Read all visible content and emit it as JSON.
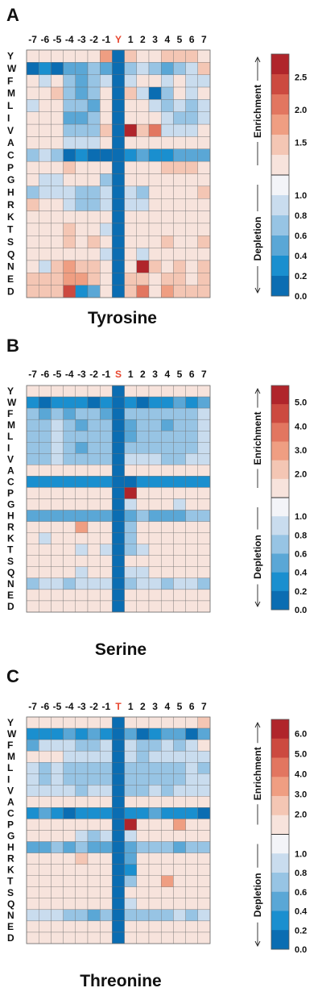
{
  "amino_acids": [
    "Y",
    "W",
    "F",
    "M",
    "L",
    "I",
    "V",
    "A",
    "C",
    "P",
    "G",
    "H",
    "R",
    "K",
    "T",
    "S",
    "Q",
    "N",
    "E",
    "D"
  ],
  "positions": [
    "-7",
    "-6",
    "-5",
    "-4",
    "-3",
    "-2",
    "-1",
    "0",
    "1",
    "2",
    "3",
    "4",
    "5",
    "6",
    "7"
  ],
  "colors": {
    "depletion": [
      "#0b6db2",
      "#1a8fcf",
      "#5aa7d6",
      "#97c4e4",
      "#c9dcee",
      "#f3f4f8"
    ],
    "enrichment": [
      "#f7e3dc",
      "#f4c6b4",
      "#ef9e82",
      "#e27660",
      "#cc4a40",
      "#b0252b"
    ],
    "center_column": "#0b6db2",
    "center_label": "#e8452e",
    "grid_line": "#6e6e6e"
  },
  "side_labels": {
    "enrichment": "Enrichment",
    "depletion": "Depletion"
  },
  "chart_data": [
    {
      "type": "heatmap",
      "panel": "A",
      "title": "Tyrosine",
      "center_residue": "Y",
      "colorbar": {
        "ticks": [
          "0.0",
          "0.2",
          "0.4",
          "0.6",
          "0.8",
          "1.0",
          "1.5",
          "2.0",
          "2.5"
        ],
        "enrich_max": 2.8
      },
      "values": [
        [
          1.2,
          1.1,
          1.2,
          1.3,
          1.2,
          1.3,
          1.7,
          0.0,
          1.4,
          1.0,
          1.1,
          1.5,
          1.5,
          1.6,
          1.3
        ],
        [
          0.1,
          0.3,
          0.0,
          0.4,
          0.4,
          0.6,
          0.5,
          0.0,
          0.6,
          0.8,
          0.7,
          0.5,
          0.6,
          0.8,
          1.4
        ],
        [
          1.1,
          0.9,
          1.0,
          0.7,
          0.5,
          0.7,
          0.9,
          0.0,
          0.8,
          1.2,
          1.0,
          0.9,
          1.0,
          0.9,
          0.8
        ],
        [
          1.2,
          1.1,
          1.4,
          0.6,
          0.4,
          0.6,
          1.3,
          0.0,
          1.4,
          0.8,
          0.1,
          0.6,
          1.0,
          0.9,
          1.1
        ],
        [
          0.9,
          1.1,
          1.2,
          0.6,
          0.6,
          0.5,
          1.3,
          0.0,
          1.2,
          1.0,
          0.8,
          0.7,
          0.8,
          0.7,
          0.9
        ],
        [
          1.0,
          1.1,
          1.1,
          0.5,
          0.4,
          0.7,
          1.2,
          0.0,
          1.2,
          1.0,
          1.2,
          0.8,
          0.7,
          0.7,
          0.8
        ],
        [
          1.2,
          1.1,
          1.3,
          0.6,
          0.6,
          0.6,
          1.6,
          0.0,
          2.8,
          1.5,
          2.1,
          0.8,
          0.8,
          0.9,
          1.0
        ],
        [
          1.1,
          1.0,
          1.2,
          0.9,
          0.9,
          0.9,
          1.3,
          0.0,
          1.1,
          1.2,
          1.1,
          1.1,
          1.1,
          1.0,
          1.1
        ],
        [
          0.7,
          0.8,
          0.6,
          0.1,
          0.3,
          0.1,
          0.1,
          0.0,
          0.2,
          0.4,
          0.3,
          0.3,
          0.4,
          0.4,
          0.4
        ],
        [
          1.2,
          1.2,
          1.3,
          1.4,
          1.2,
          1.2,
          1.1,
          0.0,
          1.1,
          1.3,
          1.3,
          1.5,
          1.5,
          1.4,
          1.3
        ],
        [
          1.0,
          0.9,
          0.9,
          1.1,
          1.2,
          1.0,
          0.6,
          0.0,
          1.1,
          1.2,
          1.0,
          1.0,
          1.0,
          1.1,
          1.1
        ],
        [
          0.6,
          0.8,
          0.9,
          0.8,
          0.6,
          0.6,
          0.8,
          0.0,
          0.8,
          0.6,
          1.0,
          1.2,
          1.1,
          1.1,
          1.4
        ],
        [
          1.6,
          1.0,
          1.1,
          0.9,
          0.7,
          0.7,
          0.9,
          0.0,
          0.9,
          0.8,
          1.0,
          1.2,
          1.1,
          1.1,
          1.2
        ],
        [
          1.2,
          1.1,
          1.2,
          1.3,
          1.3,
          1.1,
          1.0,
          0.0,
          1.2,
          1.1,
          1.3,
          1.3,
          1.3,
          1.3,
          1.3
        ],
        [
          1.2,
          1.1,
          1.2,
          1.5,
          1.3,
          1.2,
          0.9,
          0.0,
          1.3,
          1.1,
          1.3,
          1.2,
          1.3,
          1.2,
          1.3
        ],
        [
          1.2,
          1.2,
          1.2,
          1.5,
          1.2,
          1.4,
          1.0,
          0.0,
          1.3,
          1.2,
          1.2,
          1.4,
          1.2,
          1.1,
          1.4
        ],
        [
          1.0,
          1.2,
          1.3,
          1.2,
          1.1,
          1.0,
          0.9,
          0.0,
          1.1,
          0.9,
          1.1,
          1.1,
          1.2,
          1.1,
          1.3
        ],
        [
          1.3,
          0.9,
          1.6,
          1.7,
          1.6,
          1.5,
          1.0,
          0.0,
          1.3,
          2.7,
          1.4,
          1.3,
          1.4,
          1.3,
          1.4
        ],
        [
          1.4,
          1.5,
          1.6,
          1.9,
          1.7,
          1.4,
          1.1,
          0.0,
          1.5,
          1.5,
          1.2,
          1.5,
          1.4,
          1.3,
          1.5
        ],
        [
          1.5,
          1.5,
          1.6,
          2.5,
          0.3,
          0.5,
          1.0,
          0.0,
          1.6,
          2.1,
          1.2,
          1.7,
          1.6,
          1.4,
          1.5
        ]
      ]
    },
    {
      "type": "heatmap",
      "panel": "B",
      "title": "Serine",
      "center_residue": "S",
      "colorbar": {
        "ticks": [
          "0.0",
          "0.2",
          "0.4",
          "0.6",
          "0.8",
          "1.0",
          "2.0",
          "3.0",
          "4.0",
          "5.0"
        ],
        "enrich_max": 5.5
      },
      "values": [
        [
          1.2,
          1.1,
          1.1,
          1.1,
          1.2,
          1.1,
          1.0,
          0.0,
          1.1,
          1.2,
          1.1,
          1.2,
          1.1,
          1.2,
          1.2
        ],
        [
          0.2,
          0.1,
          0.2,
          0.3,
          0.2,
          0.1,
          0.2,
          0.0,
          0.3,
          0.1,
          0.2,
          0.3,
          0.4,
          0.3,
          0.4
        ],
        [
          0.6,
          0.5,
          0.7,
          0.5,
          0.6,
          0.6,
          0.5,
          0.0,
          0.7,
          0.6,
          0.6,
          0.6,
          0.6,
          0.7,
          0.8
        ],
        [
          0.6,
          0.6,
          0.8,
          0.6,
          0.5,
          0.6,
          0.6,
          0.0,
          0.5,
          0.6,
          0.7,
          0.5,
          0.6,
          0.6,
          0.8
        ],
        [
          0.7,
          0.6,
          0.8,
          0.7,
          0.6,
          0.7,
          0.7,
          0.0,
          0.5,
          0.7,
          0.7,
          0.7,
          0.7,
          0.7,
          0.9
        ],
        [
          0.7,
          0.6,
          0.8,
          0.7,
          0.5,
          0.6,
          0.7,
          0.0,
          0.6,
          0.6,
          0.7,
          0.7,
          0.6,
          0.7,
          0.8
        ],
        [
          0.7,
          0.7,
          0.9,
          0.7,
          0.7,
          0.7,
          0.7,
          0.0,
          0.8,
          0.8,
          0.8,
          0.7,
          0.7,
          0.8,
          0.9
        ],
        [
          1.2,
          1.2,
          1.3,
          1.2,
          1.2,
          1.3,
          1.2,
          0.0,
          1.1,
          1.2,
          1.3,
          1.2,
          1.2,
          1.3,
          1.3
        ],
        [
          0.2,
          0.2,
          0.2,
          0.3,
          0.3,
          0.2,
          0.2,
          0.0,
          0.1,
          0.2,
          0.3,
          0.2,
          0.3,
          0.2,
          0.3
        ],
        [
          1.2,
          1.2,
          1.3,
          1.2,
          1.2,
          1.2,
          1.1,
          0.0,
          5.3,
          1.2,
          1.3,
          1.2,
          1.3,
          1.3,
          1.2
        ],
        [
          1.1,
          1.1,
          1.2,
          1.1,
          1.1,
          1.2,
          1.2,
          0.0,
          0.8,
          1.3,
          1.1,
          1.1,
          0.9,
          1.2,
          1.1
        ],
        [
          0.4,
          0.4,
          0.5,
          0.4,
          0.4,
          0.4,
          0.4,
          0.0,
          0.4,
          0.6,
          0.5,
          0.5,
          0.5,
          0.6,
          0.6
        ],
        [
          1.1,
          1.0,
          1.1,
          1.1,
          2.8,
          1.6,
          1.2,
          0.0,
          0.7,
          1.0,
          1.1,
          1.2,
          1.2,
          1.2,
          1.3
        ],
        [
          1.0,
          0.9,
          1.0,
          1.1,
          1.3,
          1.1,
          1.0,
          0.0,
          0.6,
          1.1,
          1.1,
          1.0,
          1.1,
          1.1,
          1.1
        ],
        [
          1.1,
          1.0,
          1.0,
          1.0,
          0.8,
          1.2,
          0.9,
          0.0,
          0.7,
          0.9,
          1.1,
          1.2,
          1.2,
          1.1,
          1.2
        ],
        [
          1.2,
          1.3,
          1.2,
          1.7,
          1.4,
          1.6,
          1.3,
          0.0,
          1.0,
          1.2,
          1.2,
          1.3,
          1.2,
          1.1,
          1.2
        ],
        [
          1.1,
          1.1,
          1.1,
          1.2,
          0.9,
          1.0,
          1.2,
          0.0,
          0.8,
          0.9,
          1.2,
          1.1,
          1.1,
          1.1,
          1.0
        ],
        [
          0.7,
          0.8,
          0.8,
          0.7,
          0.8,
          0.8,
          0.8,
          0.0,
          0.7,
          0.8,
          0.8,
          0.7,
          0.8,
          0.8,
          0.7
        ],
        [
          1.2,
          1.2,
          1.1,
          1.3,
          1.2,
          1.2,
          1.3,
          0.0,
          1.2,
          1.5,
          1.2,
          1.3,
          1.2,
          1.3,
          1.2
        ],
        [
          1.2,
          1.3,
          1.3,
          1.2,
          1.3,
          1.2,
          1.3,
          0.0,
          1.3,
          1.2,
          1.3,
          1.2,
          1.3,
          1.2,
          1.2
        ]
      ]
    },
    {
      "type": "heatmap",
      "panel": "C",
      "title": "Threonine",
      "center_residue": "T",
      "colorbar": {
        "ticks": [
          "0.0",
          "0.2",
          "0.4",
          "0.6",
          "0.8",
          "1.0",
          "2.0",
          "3.0",
          "4.0",
          "5.0",
          "6.0"
        ],
        "enrich_max": 6.5
      },
      "values": [
        [
          1.2,
          1.2,
          1.1,
          1.1,
          1.1,
          1.1,
          1.0,
          0.0,
          1.1,
          1.2,
          1.2,
          1.2,
          1.2,
          1.4,
          2.2
        ],
        [
          0.2,
          0.3,
          0.2,
          0.4,
          0.3,
          0.4,
          0.3,
          0.0,
          0.5,
          0.1,
          0.3,
          0.5,
          0.5,
          0.1,
          0.5
        ],
        [
          0.4,
          0.8,
          0.8,
          0.8,
          0.7,
          0.7,
          0.8,
          0.0,
          0.9,
          0.6,
          0.7,
          0.8,
          0.7,
          0.8,
          1.1
        ],
        [
          1.1,
          1.2,
          1.1,
          0.9,
          0.8,
          0.9,
          0.9,
          0.0,
          0.8,
          0.7,
          0.8,
          0.9,
          0.8,
          0.8,
          0.9
        ],
        [
          0.8,
          0.7,
          0.8,
          0.7,
          0.6,
          0.7,
          0.7,
          0.0,
          0.7,
          0.6,
          0.7,
          0.7,
          0.7,
          0.8,
          0.7
        ],
        [
          0.8,
          0.7,
          0.8,
          0.7,
          0.6,
          0.7,
          0.6,
          0.0,
          0.6,
          0.6,
          0.7,
          0.6,
          0.7,
          0.8,
          0.8
        ],
        [
          0.8,
          0.8,
          0.9,
          0.8,
          0.7,
          0.8,
          0.8,
          0.0,
          0.7,
          0.7,
          0.8,
          0.7,
          0.8,
          0.8,
          0.9
        ],
        [
          1.2,
          1.2,
          1.3,
          1.2,
          1.2,
          1.1,
          1.2,
          0.0,
          1.2,
          1.3,
          1.2,
          1.3,
          1.2,
          1.4,
          1.3
        ],
        [
          0.3,
          0.4,
          0.2,
          0.1,
          0.3,
          0.3,
          0.2,
          0.0,
          0.3,
          0.2,
          0.4,
          0.3,
          0.3,
          0.2,
          0.1
        ],
        [
          1.2,
          1.2,
          1.3,
          1.2,
          1.2,
          1.2,
          1.1,
          0.0,
          6.2,
          1.3,
          1.2,
          1.3,
          3.1,
          1.3,
          1.2
        ],
        [
          1.2,
          1.1,
          1.2,
          1.1,
          0.9,
          0.7,
          0.8,
          0.0,
          0.8,
          1.2,
          1.2,
          1.1,
          1.1,
          1.2,
          1.1
        ],
        [
          0.5,
          0.5,
          0.6,
          0.5,
          0.6,
          0.5,
          0.5,
          0.0,
          0.5,
          0.6,
          0.6,
          0.6,
          0.5,
          0.6,
          0.6
        ],
        [
          1.1,
          1.0,
          1.1,
          1.2,
          2.4,
          1.2,
          1.1,
          0.0,
          0.4,
          1.0,
          1.1,
          1.2,
          1.1,
          1.2,
          1.2
        ],
        [
          1.1,
          1.2,
          1.1,
          1.1,
          1.2,
          1.1,
          1.1,
          0.0,
          0.3,
          1.1,
          1.1,
          1.0,
          1.1,
          1.2,
          1.1
        ],
        [
          1.1,
          1.2,
          1.1,
          1.2,
          1.1,
          1.2,
          1.1,
          0.0,
          0.7,
          1.1,
          1.2,
          3.0,
          1.3,
          1.2,
          1.2
        ],
        [
          1.2,
          1.1,
          1.2,
          1.3,
          1.2,
          1.2,
          1.2,
          0.0,
          1.0,
          1.1,
          1.2,
          1.2,
          1.3,
          1.2,
          1.2
        ],
        [
          1.1,
          1.1,
          1.0,
          1.1,
          1.2,
          1.1,
          1.0,
          0.0,
          0.9,
          1.0,
          1.2,
          1.1,
          1.1,
          1.1,
          1.1
        ],
        [
          0.9,
          0.8,
          0.8,
          0.6,
          0.7,
          0.5,
          0.6,
          0.0,
          0.6,
          0.6,
          0.7,
          0.7,
          0.8,
          0.7,
          0.8
        ],
        [
          1.2,
          1.3,
          1.2,
          1.3,
          1.2,
          1.2,
          1.2,
          0.0,
          1.3,
          1.2,
          1.2,
          1.3,
          1.2,
          1.3,
          1.2
        ],
        [
          1.3,
          1.2,
          1.3,
          1.2,
          1.3,
          1.2,
          1.3,
          0.0,
          1.2,
          1.3,
          1.2,
          1.3,
          1.2,
          1.3,
          1.2
        ]
      ]
    }
  ]
}
